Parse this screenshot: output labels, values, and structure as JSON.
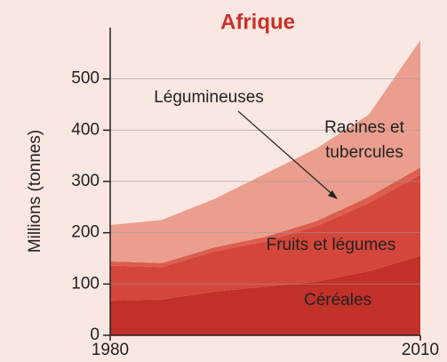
{
  "chart_data": {
    "type": "stacked_area",
    "title": "Afrique",
    "y_label": "Millions (tonnes)",
    "x": [
      1980,
      1985,
      1990,
      1995,
      2000,
      2005,
      2010
    ],
    "xlim": [
      1980,
      2010
    ],
    "xticks": [
      1980,
      2010
    ],
    "ylim": [
      0,
      600
    ],
    "yticks": [
      0,
      100,
      200,
      300,
      400,
      500
    ],
    "grid": true,
    "series": [
      {
        "name": "Céréales",
        "color": "#c2302a",
        "values": [
          68,
          70,
          85,
          95,
          105,
          125,
          155
        ]
      },
      {
        "name": "Fruits et légumes",
        "color": "#d4463b",
        "values": [
          68,
          63,
          78,
          88,
          108,
          133,
          158
        ]
      },
      {
        "name": "Légumineuses",
        "color": "#db5e4f",
        "values": [
          8,
          8,
          8,
          9,
          10,
          12,
          14
        ]
      },
      {
        "name": "Racines et tubercules",
        "color": "#eb9e8e",
        "values": [
          71,
          84,
          94,
          123,
          142,
          160,
          248
        ]
      }
    ]
  }
}
